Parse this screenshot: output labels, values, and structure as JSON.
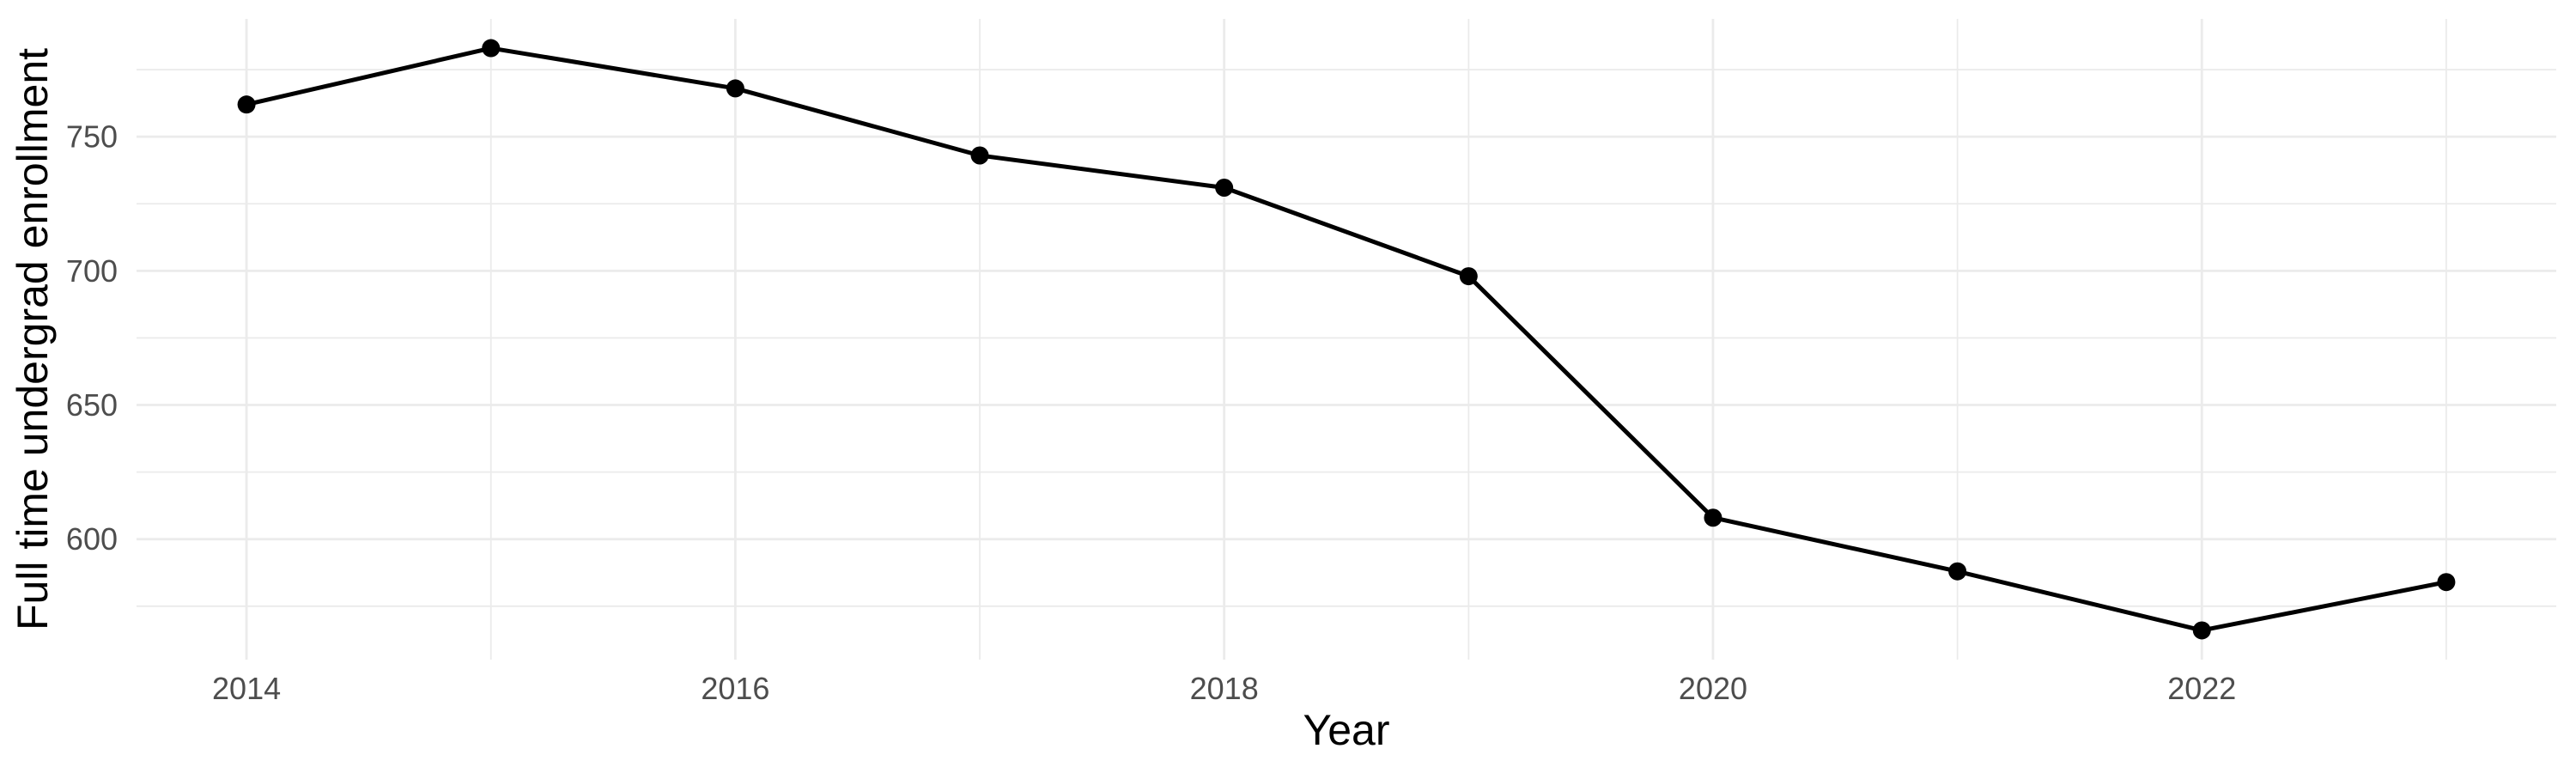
{
  "chart_data": {
    "type": "line",
    "title": "",
    "xlabel": "Year",
    "ylabel": "Full time undergrad enrollment",
    "x": [
      2014,
      2015,
      2016,
      2017,
      2018,
      2019,
      2020,
      2021,
      2022,
      2023
    ],
    "values": [
      762,
      783,
      768,
      743,
      731,
      698,
      608,
      588,
      566,
      584
    ],
    "series_name": "Full time undergrad enrollment",
    "x_major_breaks": [
      2014,
      2016,
      2018,
      2020,
      2022
    ],
    "x_major_labels": [
      "2014",
      "2016",
      "2018",
      "2020",
      "2022"
    ],
    "x_minor_breaks": [
      2015,
      2017,
      2019,
      2021,
      2023
    ],
    "y_major_breaks": [
      600,
      650,
      700,
      750
    ],
    "y_major_labels": [
      "600",
      "650",
      "700",
      "750"
    ],
    "y_minor_breaks": [
      575,
      625,
      675,
      725,
      775
    ],
    "xlim": [
      2013.55,
      2023.45
    ],
    "ylim": [
      555.1,
      793.9
    ],
    "grid": true,
    "legend": "none",
    "colors": {
      "line": "#000000",
      "point": "#000000",
      "grid": "#EBEBEB",
      "tick_label": "#4D4D4D",
      "axis_title": "#000000",
      "background": "#FFFFFF"
    }
  }
}
